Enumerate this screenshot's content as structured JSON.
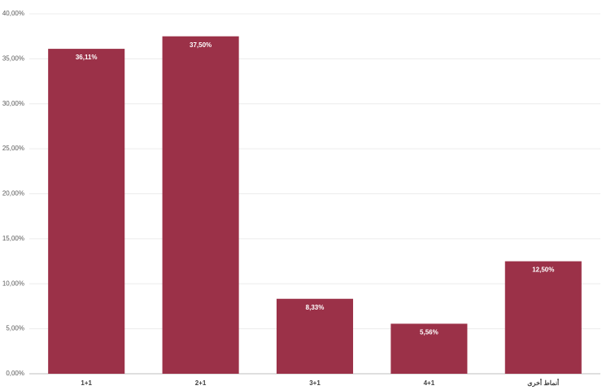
{
  "chart_data": {
    "type": "bar",
    "categories": [
      "1+1",
      "2+1",
      "3+1",
      "4+1",
      "أنماط أخرى"
    ],
    "values": [
      36.11,
      37.5,
      8.33,
      5.56,
      12.5
    ],
    "value_labels": [
      "36,11%",
      "37,50%",
      "8,33%",
      "5,56%",
      "12,50%"
    ],
    "color": "#9b3148",
    "ylim": [
      0,
      40
    ],
    "yticks": [
      {
        "value": 0,
        "label": "0,00%"
      },
      {
        "value": 5,
        "label": "5,00%"
      },
      {
        "value": 10,
        "label": "10,00%"
      },
      {
        "value": 15,
        "label": "15,00%"
      },
      {
        "value": 20,
        "label": "20,00%"
      },
      {
        "value": 25,
        "label": "25,00%"
      },
      {
        "value": 30,
        "label": "30,00%"
      },
      {
        "value": 35,
        "label": "35,00%"
      },
      {
        "value": 40,
        "label": "40,00%"
      }
    ],
    "grid": true
  }
}
